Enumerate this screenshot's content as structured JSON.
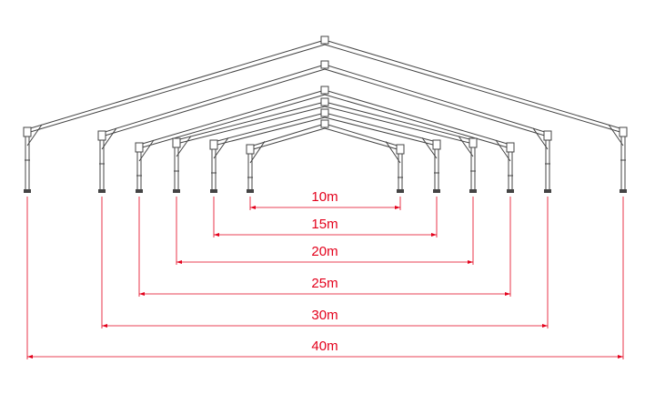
{
  "dimensions": [
    "10m",
    "15m",
    "20m",
    "25m",
    "30m",
    "40m"
  ]
}
